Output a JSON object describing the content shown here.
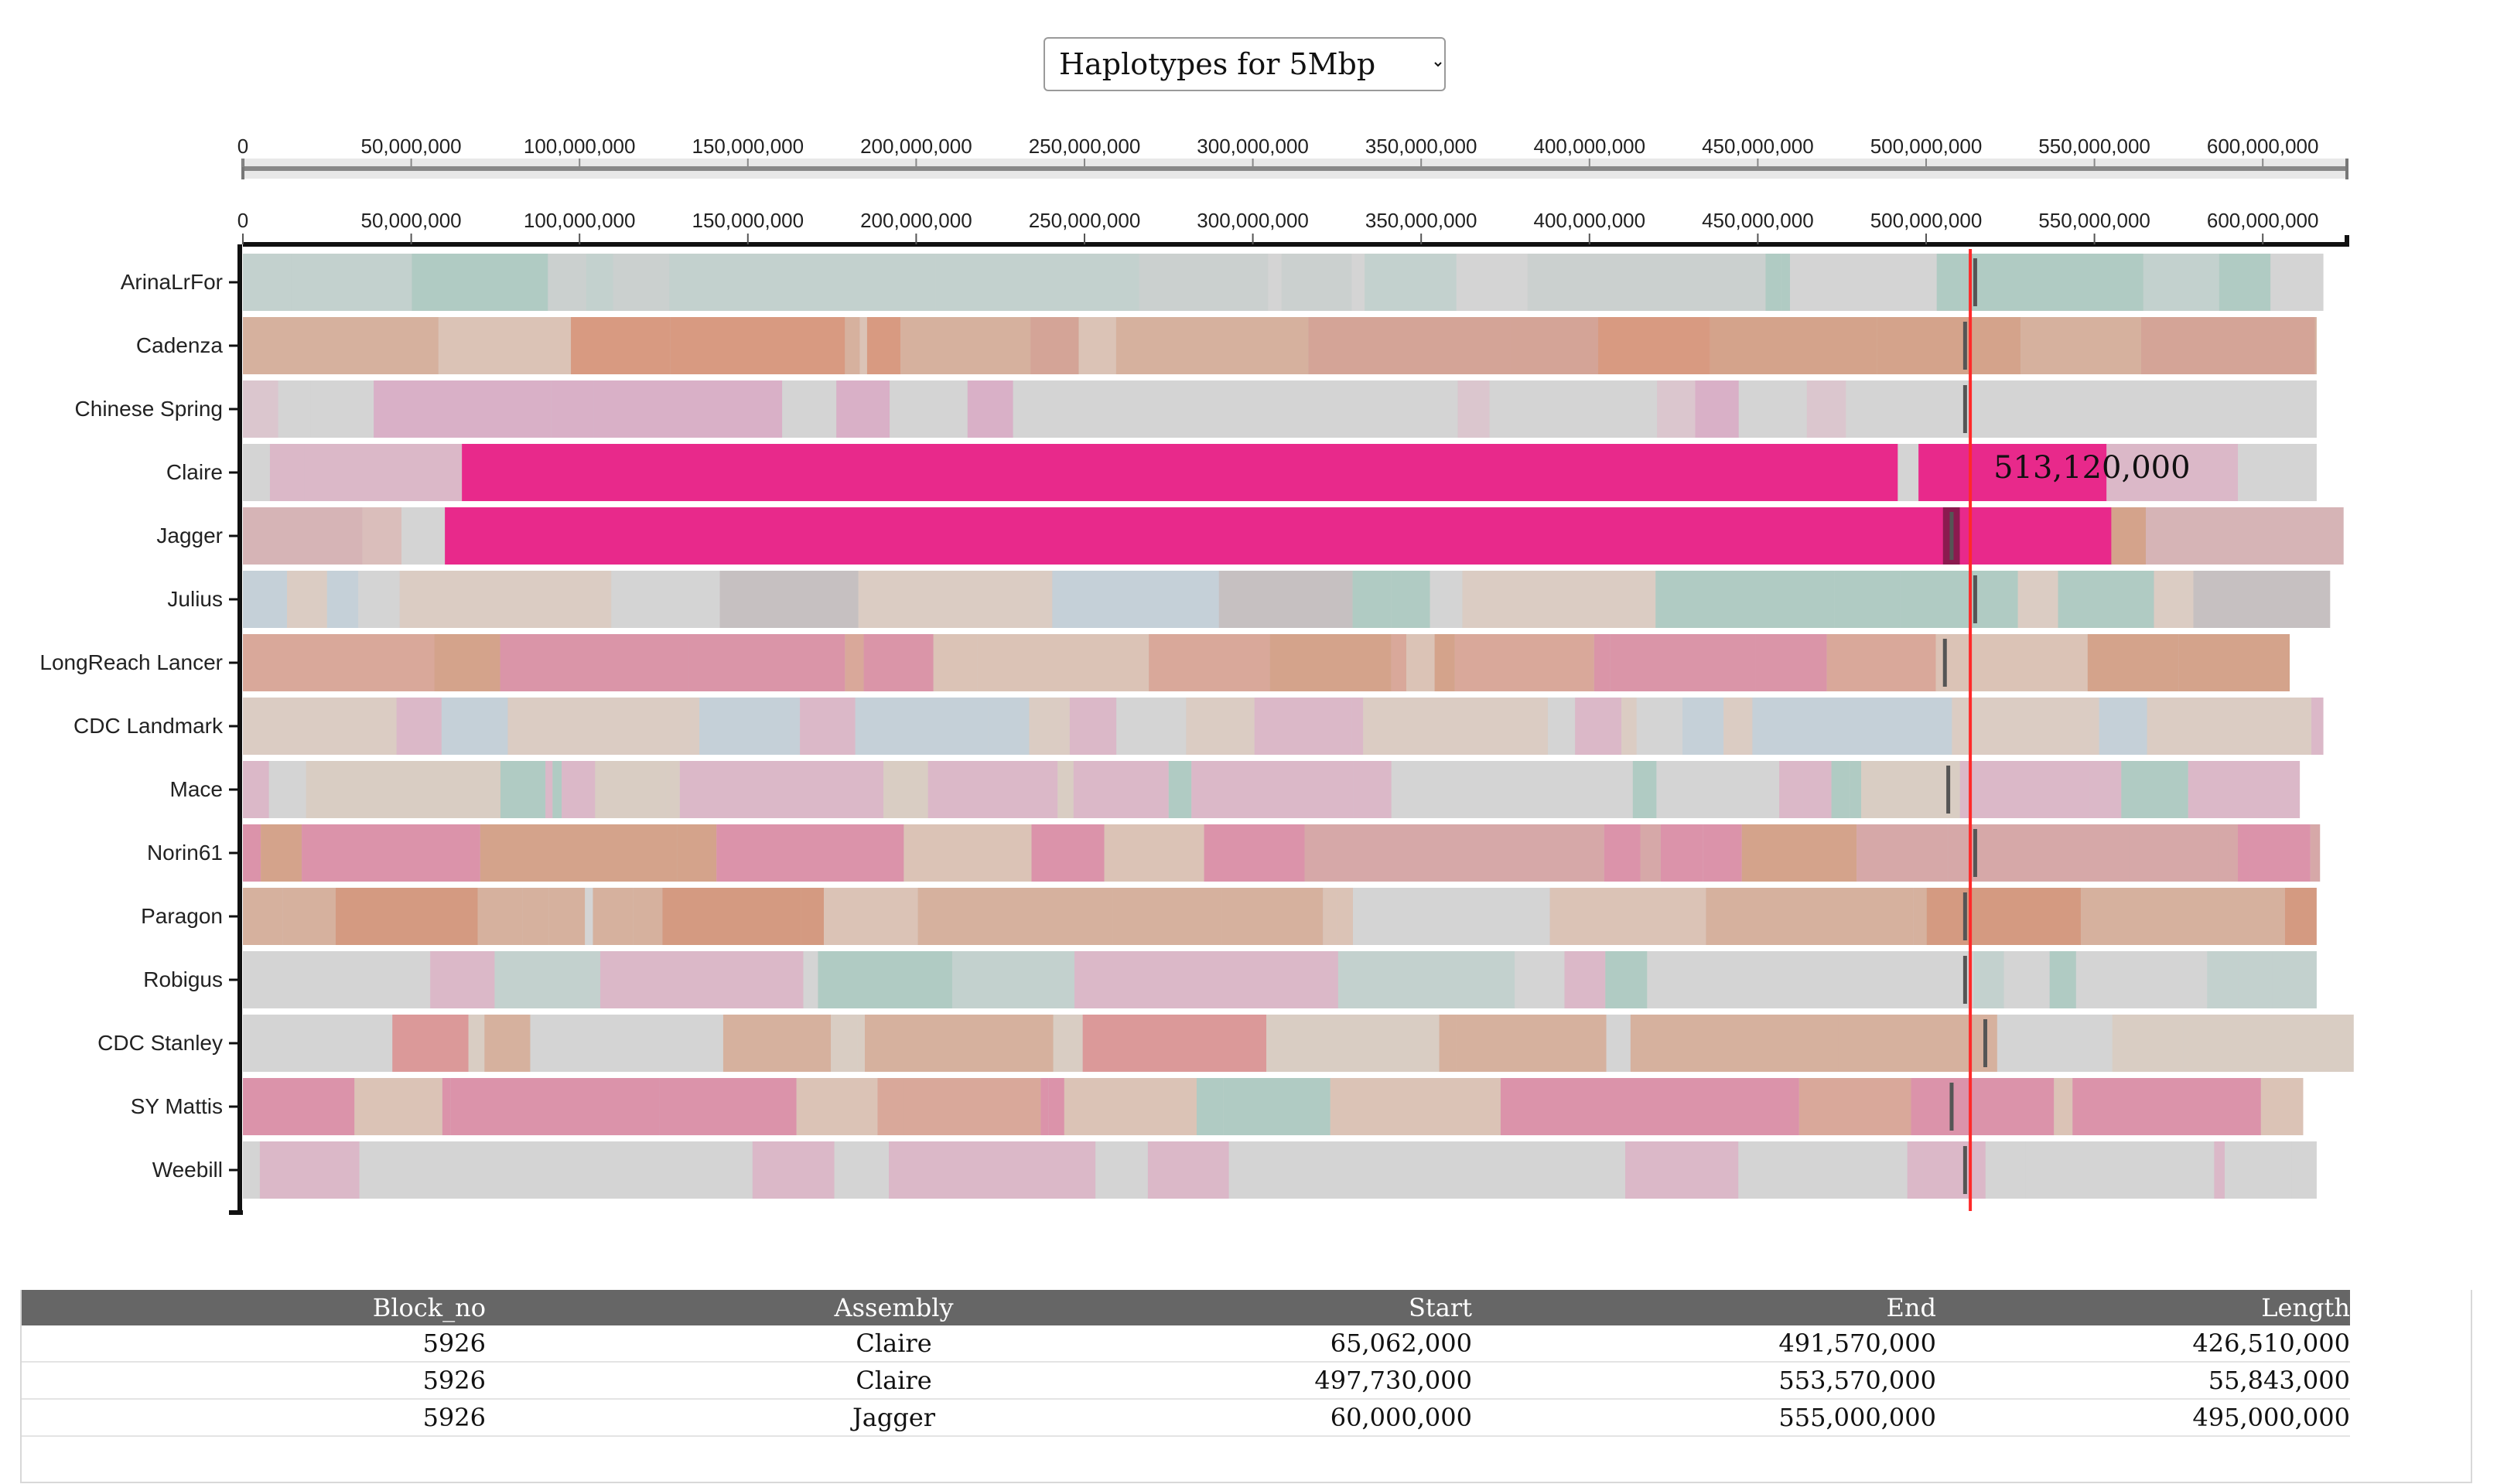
{
  "selector": {
    "selected": "Haplotypes for 5Mbp",
    "options": [
      "Haplotypes for 5Mbp"
    ]
  },
  "chart_data": {
    "type": "haplotype-track",
    "x_ticks": [
      "0",
      "50,000,000",
      "100,000,000",
      "150,000,000",
      "200,000,000",
      "250,000,000",
      "300,000,000",
      "350,000,000",
      "400,000,000",
      "450,000,000",
      "500,000,000",
      "550,000,000",
      "600,000,000"
    ],
    "x_tick_values": [
      0,
      50000000,
      100000000,
      150000000,
      200000000,
      250000000,
      300000000,
      350000000,
      400000000,
      450000000,
      500000000,
      550000000,
      600000000
    ],
    "xlim": [
      0,
      625000000
    ],
    "cursor_position": 513120000,
    "cursor_label": "513,120,000",
    "cursor_color": "#ff2a2a",
    "highlight_color": "#e8298b",
    "highlight_dark_color": "#8b1a4f",
    "assemblies": [
      {
        "name": "ArinaLrFor",
        "length": 618000000,
        "palette": [
          "#bfd0cc",
          "#a9c9bf",
          "#c9cfce",
          "#d3d3d3"
        ],
        "marker": 514000000
      },
      {
        "name": "Cadenza",
        "length": 616000000,
        "palette": [
          "#d49a7e",
          "#d88f72",
          "#d6aa94",
          "#dcc0b0",
          "#d49b8c"
        ],
        "marker": 511000000
      },
      {
        "name": "Chinese Spring",
        "length": 616000000,
        "palette": [
          "#d3d3d3",
          "#d3d3d3",
          "#dcc3cc",
          "#d9a9c4"
        ],
        "marker": 511000000
      },
      {
        "name": "Claire",
        "length": 616000000,
        "palette": [
          "#d8c4cc",
          "#dcb3c5",
          "#d3d3d3"
        ],
        "marker": null,
        "highlights": [
          [
            65062000,
            491570000
          ],
          [
            497730000,
            553570000
          ]
        ]
      },
      {
        "name": "Jagger",
        "length": 624000000,
        "palette": [
          "#d6aeb0",
          "#dbbab6",
          "#d49a7e",
          "#d3d3d3"
        ],
        "marker": 507000000,
        "highlights": [
          [
            60000000,
            555000000
          ]
        ]
      },
      {
        "name": "Julius",
        "length": 620000000,
        "palette": [
          "#a9c9bf",
          "#c2cfd8",
          "#d3d3d3",
          "#dccac0",
          "#c3bcbd"
        ],
        "marker": 514000000
      },
      {
        "name": "LongReach Lancer",
        "length": 608000000,
        "palette": [
          "#db8aa0",
          "#d49a7e",
          "#d9a08f",
          "#dcc0b0"
        ],
        "marker": 505000000
      },
      {
        "name": "CDC Landmark",
        "length": 618000000,
        "palette": [
          "#d3d3d3",
          "#c2cfd8",
          "#dccac0",
          "#dcb3c5"
        ],
        "marker": null
      },
      {
        "name": "Mace",
        "length": 611000000,
        "palette": [
          "#d9cbc0",
          "#d3d3d3",
          "#a9c9bf",
          "#dcb3c5"
        ],
        "marker": 506000000
      },
      {
        "name": "Norin61",
        "length": 617000000,
        "palette": [
          "#dc87a2",
          "#d6a0a0",
          "#dcc0b0",
          "#d49a7e"
        ],
        "marker": 514000000
      },
      {
        "name": "Paragon",
        "length": 616000000,
        "palette": [
          "#d48f72",
          "#d6aa94",
          "#dcc0b0",
          "#d3d3d3"
        ],
        "marker": 511000000
      },
      {
        "name": "Robigus",
        "length": 616000000,
        "palette": [
          "#bfd0cc",
          "#a9c9bf",
          "#d3d3d3",
          "#dcb3c5"
        ],
        "marker": 511000000
      },
      {
        "name": "CDC Stanley",
        "length": 627000000,
        "palette": [
          "#d9cbc0",
          "#dc8e8e",
          "#d6aa94",
          "#d3d3d3"
        ],
        "marker": 517000000
      },
      {
        "name": "SY Mattis",
        "length": 612000000,
        "palette": [
          "#dc87a2",
          "#d9a08f",
          "#a9c9bf",
          "#dcc0b0"
        ],
        "marker": 507000000
      },
      {
        "name": "Weebill",
        "length": 616000000,
        "palette": [
          "#d3d3d3",
          "#dcb3c5",
          "#d3d3d3"
        ],
        "marker": 511000000
      }
    ]
  },
  "table": {
    "headers": [
      "Block_no",
      "Assembly",
      "Start",
      "End",
      "Length"
    ],
    "rows": [
      [
        "5926",
        "Claire",
        "65,062,000",
        "491,570,000",
        "426,510,000"
      ],
      [
        "5926",
        "Claire",
        "497,730,000",
        "553,570,000",
        "55,843,000"
      ],
      [
        "5926",
        "Jagger",
        "60,000,000",
        "555,000,000",
        "495,000,000"
      ]
    ]
  }
}
